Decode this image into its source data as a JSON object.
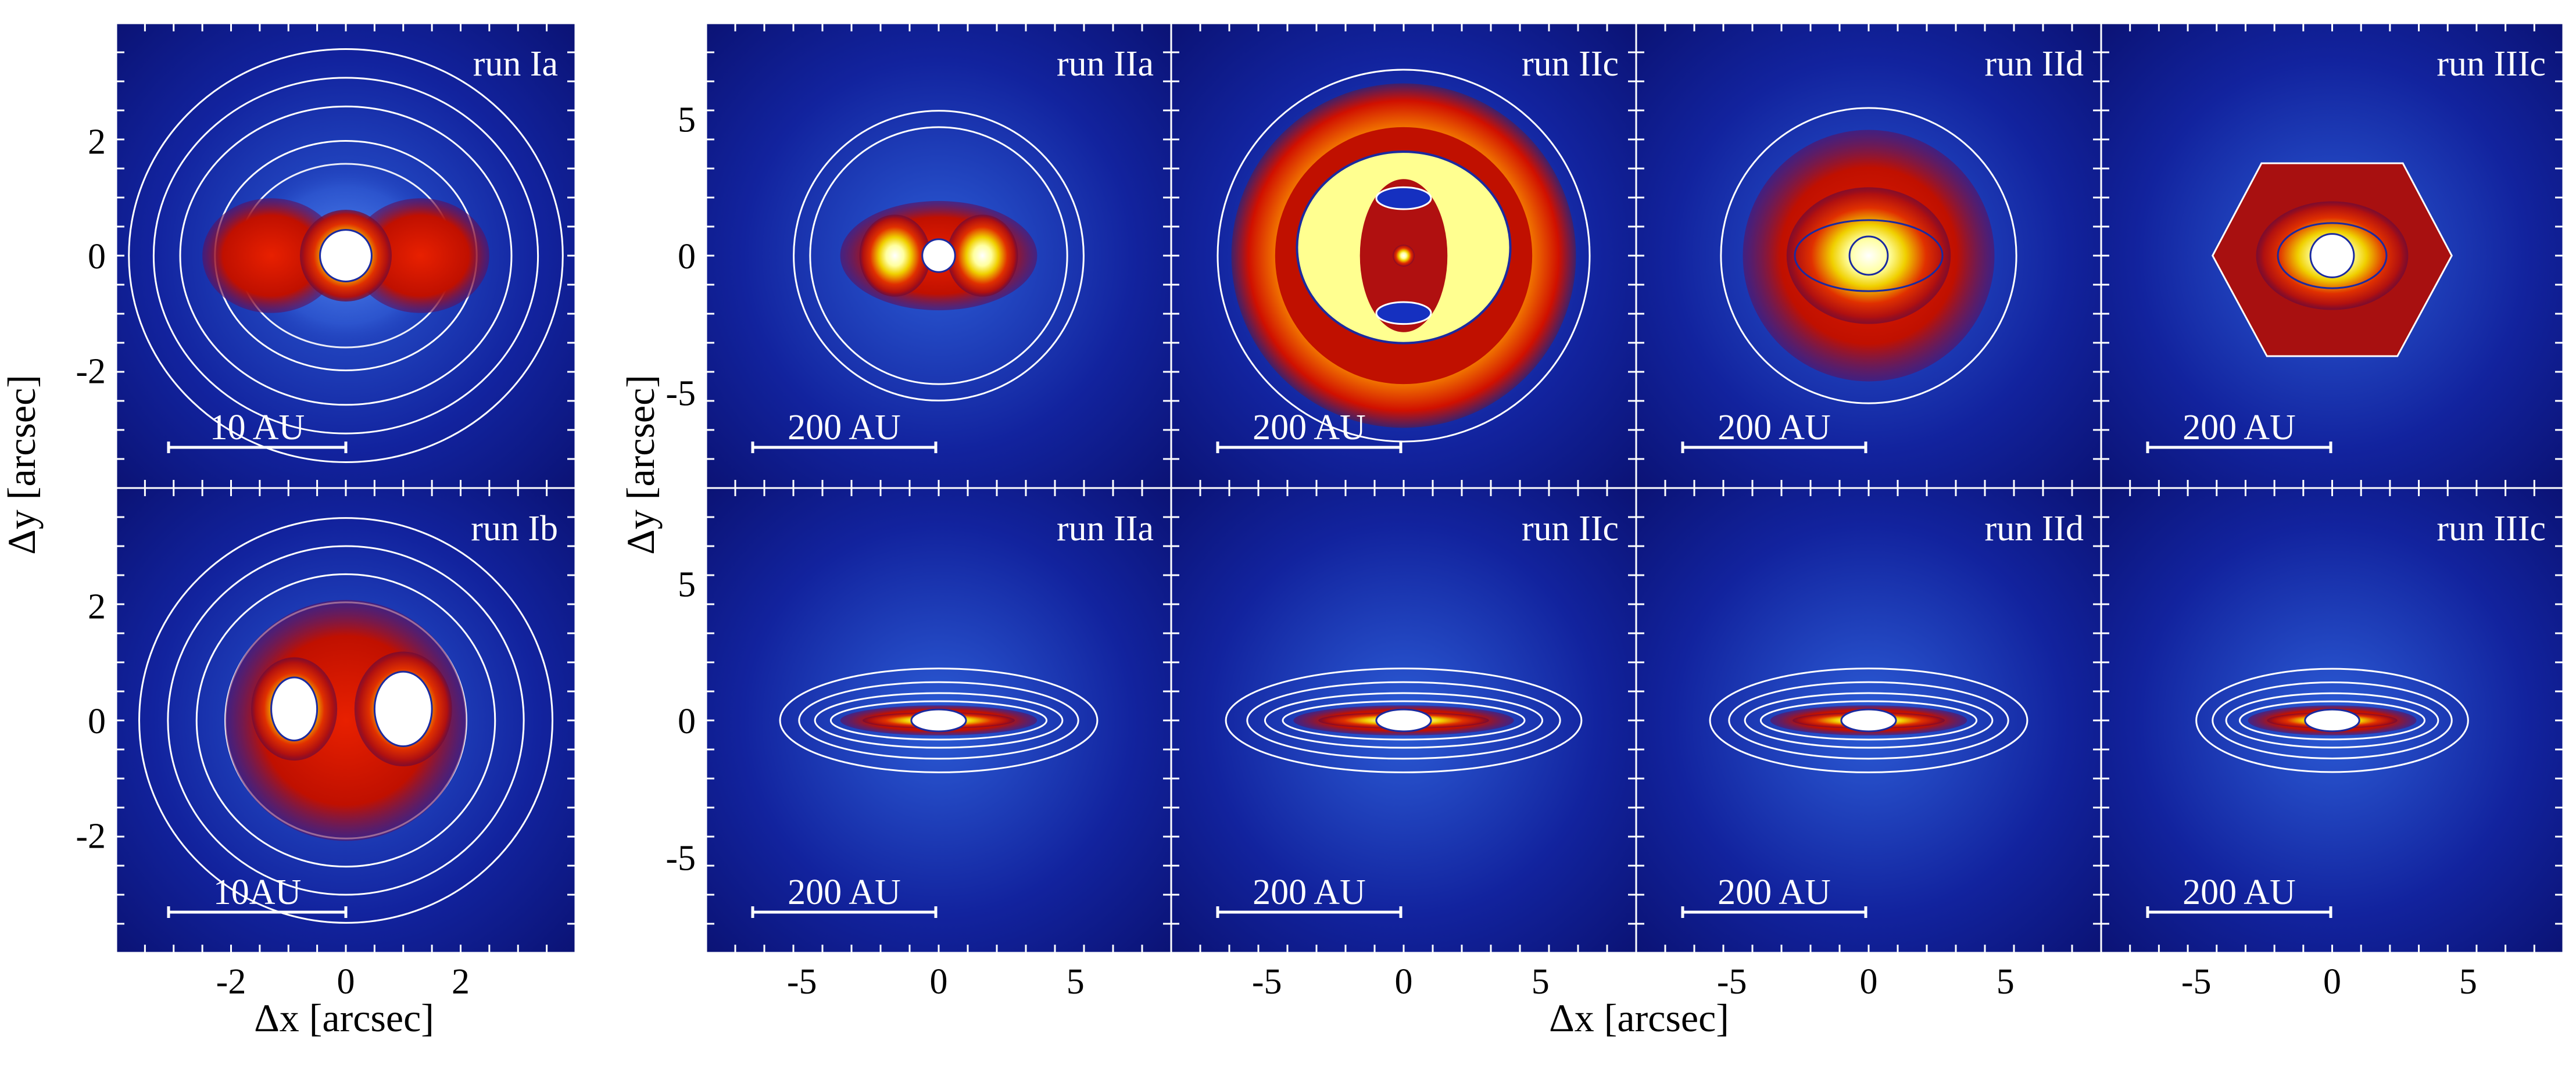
{
  "figure": {
    "axis_labels": {
      "left_y": "Δy [arcsec]",
      "left_x": "Δx [arcsec]",
      "right_y": "Δy [arcsec]",
      "right_x": "Δx [arcsec]"
    }
  },
  "chart_data": [
    {
      "type": "heatmap",
      "title": "run Ia",
      "scale_bar": "10 AU",
      "xlim": [
        -4,
        4
      ],
      "ylim": [
        -4,
        4
      ],
      "xticks": [
        "-2",
        "0",
        "2"
      ],
      "yticks": [
        "2",
        "0",
        "-2"
      ],
      "xlabel": "",
      "ylabel": "Δy [arcsec]",
      "peak": "two lobes at x=±1.5, central bright core at origin"
    },
    {
      "type": "heatmap",
      "title": "run Ib",
      "scale_bar": "10AU",
      "xlim": [
        -4,
        4
      ],
      "ylim": [
        -4,
        4
      ],
      "xticks": [
        "-2",
        "0",
        "2"
      ],
      "yticks": [
        "2",
        "0",
        "-2"
      ],
      "xlabel": "Δx [arcsec]",
      "ylabel": "Δy [arcsec]",
      "peak": "two bright blobs at x≈-0.9 and x≈+1.0"
    },
    {
      "type": "heatmap",
      "title": "run IIa",
      "scale_bar": "200 AU",
      "view": "face-on",
      "xlim": [
        -8.5,
        8.5
      ],
      "ylim": [
        -8.5,
        8.5
      ],
      "yticks": [
        "5",
        "0",
        "-5"
      ]
    },
    {
      "type": "heatmap",
      "title": "run IIc",
      "scale_bar": "200 AU",
      "view": "face-on",
      "xlim": [
        -8.5,
        8.5
      ],
      "ylim": [
        -8.5,
        8.5
      ]
    },
    {
      "type": "heatmap",
      "title": "run IId",
      "scale_bar": "200 AU",
      "view": "face-on",
      "xlim": [
        -8.5,
        8.5
      ],
      "ylim": [
        -8.5,
        8.5
      ]
    },
    {
      "type": "heatmap",
      "title": "run IIIc",
      "scale_bar": "200 AU",
      "view": "face-on",
      "xlim": [
        -8.5,
        8.5
      ],
      "ylim": [
        -8.5,
        8.5
      ]
    },
    {
      "type": "heatmap",
      "title": "run IIa",
      "scale_bar": "200 AU",
      "view": "edge-on",
      "xlim": [
        -8.5,
        8.5
      ],
      "ylim": [
        -8.5,
        8.5
      ],
      "xticks": [
        "-5",
        "0",
        "5"
      ],
      "yticks": [
        "5",
        "0",
        "-5"
      ]
    },
    {
      "type": "heatmap",
      "title": "run IIc",
      "scale_bar": "200 AU",
      "view": "edge-on",
      "xlim": [
        -8.5,
        8.5
      ],
      "ylim": [
        -8.5,
        8.5
      ],
      "xticks": [
        "-5",
        "0",
        "5"
      ]
    },
    {
      "type": "heatmap",
      "title": "run IId",
      "scale_bar": "200 AU",
      "view": "edge-on",
      "xlim": [
        -8.5,
        8.5
      ],
      "ylim": [
        -8.5,
        8.5
      ],
      "xticks": [
        "-5",
        "0",
        "5"
      ]
    },
    {
      "type": "heatmap",
      "title": "run IIIc",
      "scale_bar": "200 AU",
      "view": "edge-on",
      "xlim": [
        -8.5,
        8.5
      ],
      "ylim": [
        -8.5,
        8.5
      ],
      "xticks": [
        "-5",
        "0",
        "5"
      ]
    }
  ]
}
